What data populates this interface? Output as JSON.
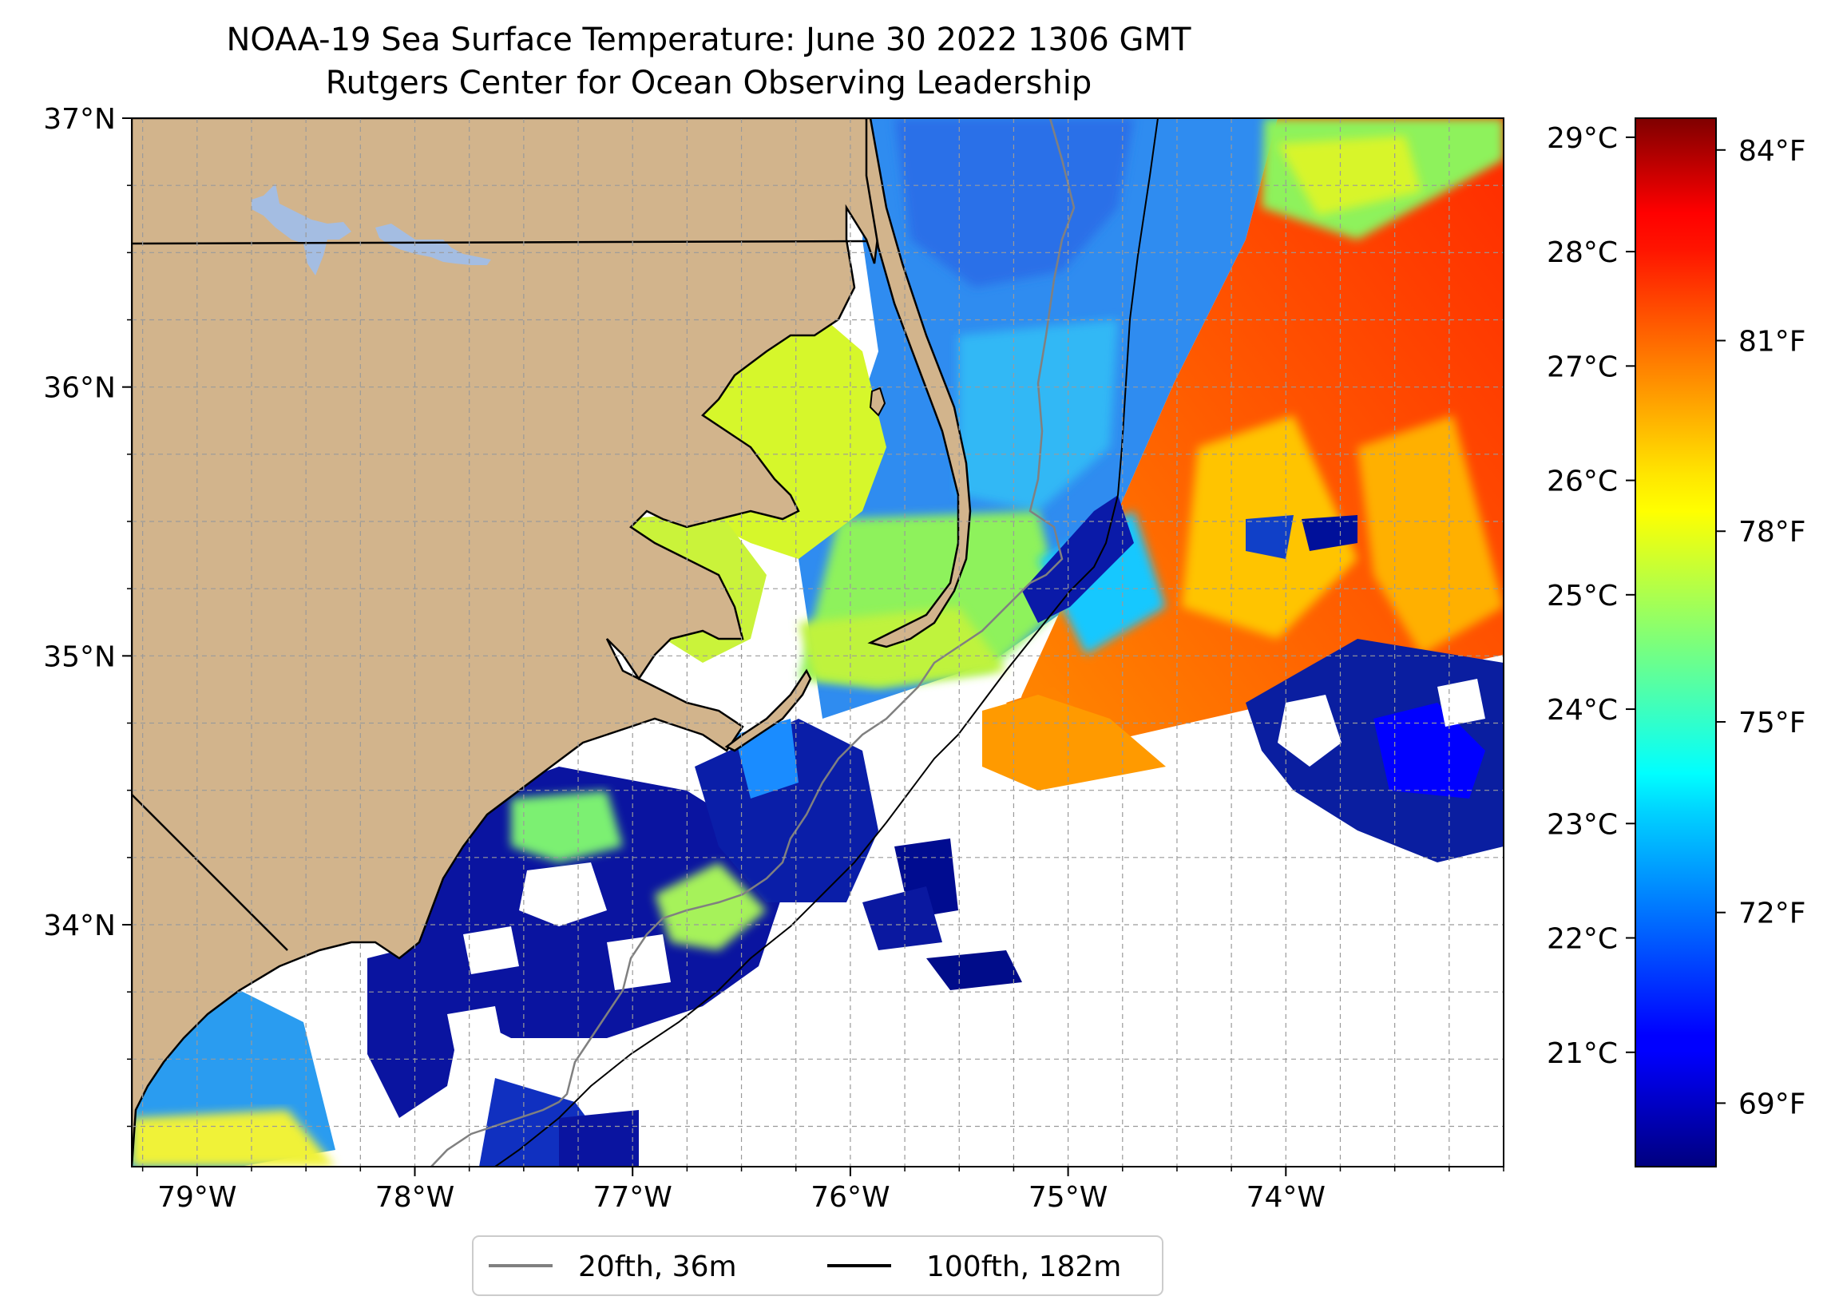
{
  "title": {
    "line1": "NOAA-19 Sea Surface Temperature: June 30 2022 1306 GMT",
    "line2": "Rutgers Center for Ocean Observing Leadership"
  },
  "map": {
    "lon_range": [
      -79.3,
      -73.0
    ],
    "lat_range": [
      33.1,
      37.0
    ],
    "lon_ticks": [
      {
        "value": -79,
        "label": "79°W"
      },
      {
        "value": -78,
        "label": "78°W"
      },
      {
        "value": -77,
        "label": "77°W"
      },
      {
        "value": -76,
        "label": "76°W"
      },
      {
        "value": -75,
        "label": "75°W"
      },
      {
        "value": -74,
        "label": "74°W"
      }
    ],
    "lat_ticks": [
      {
        "value": 37,
        "label": "37°N"
      },
      {
        "value": 36,
        "label": "36°N"
      },
      {
        "value": 35,
        "label": "35°N"
      },
      {
        "value": 34,
        "label": "34°N"
      }
    ],
    "grid": true,
    "land_color": "#d2b48c",
    "lake_color": "#a4bde2"
  },
  "colorbar": {
    "colormap": "jet",
    "celsius_ticks": [
      {
        "value": 29,
        "label": "29°C"
      },
      {
        "value": 28,
        "label": "28°C"
      },
      {
        "value": 27,
        "label": "27°C"
      },
      {
        "value": 26,
        "label": "26°C"
      },
      {
        "value": 25,
        "label": "25°C"
      },
      {
        "value": 24,
        "label": "24°C"
      },
      {
        "value": 23,
        "label": "23°C"
      },
      {
        "value": 22,
        "label": "22°C"
      },
      {
        "value": 21,
        "label": "21°C"
      }
    ],
    "fahrenheit_ticks": [
      {
        "value": 84,
        "label": "84°F"
      },
      {
        "value": 81,
        "label": "81°F"
      },
      {
        "value": 78,
        "label": "78°F"
      },
      {
        "value": 75,
        "label": "75°F"
      },
      {
        "value": 72,
        "label": "72°F"
      },
      {
        "value": 69,
        "label": "69°F"
      }
    ],
    "range_f": [
      68,
      84.5
    ]
  },
  "legend": {
    "location": "bottom-center",
    "items": [
      {
        "label": "20fth, 36m",
        "color": "#808080"
      },
      {
        "label": "100fth, 182m",
        "color": "#000000"
      }
    ]
  }
}
